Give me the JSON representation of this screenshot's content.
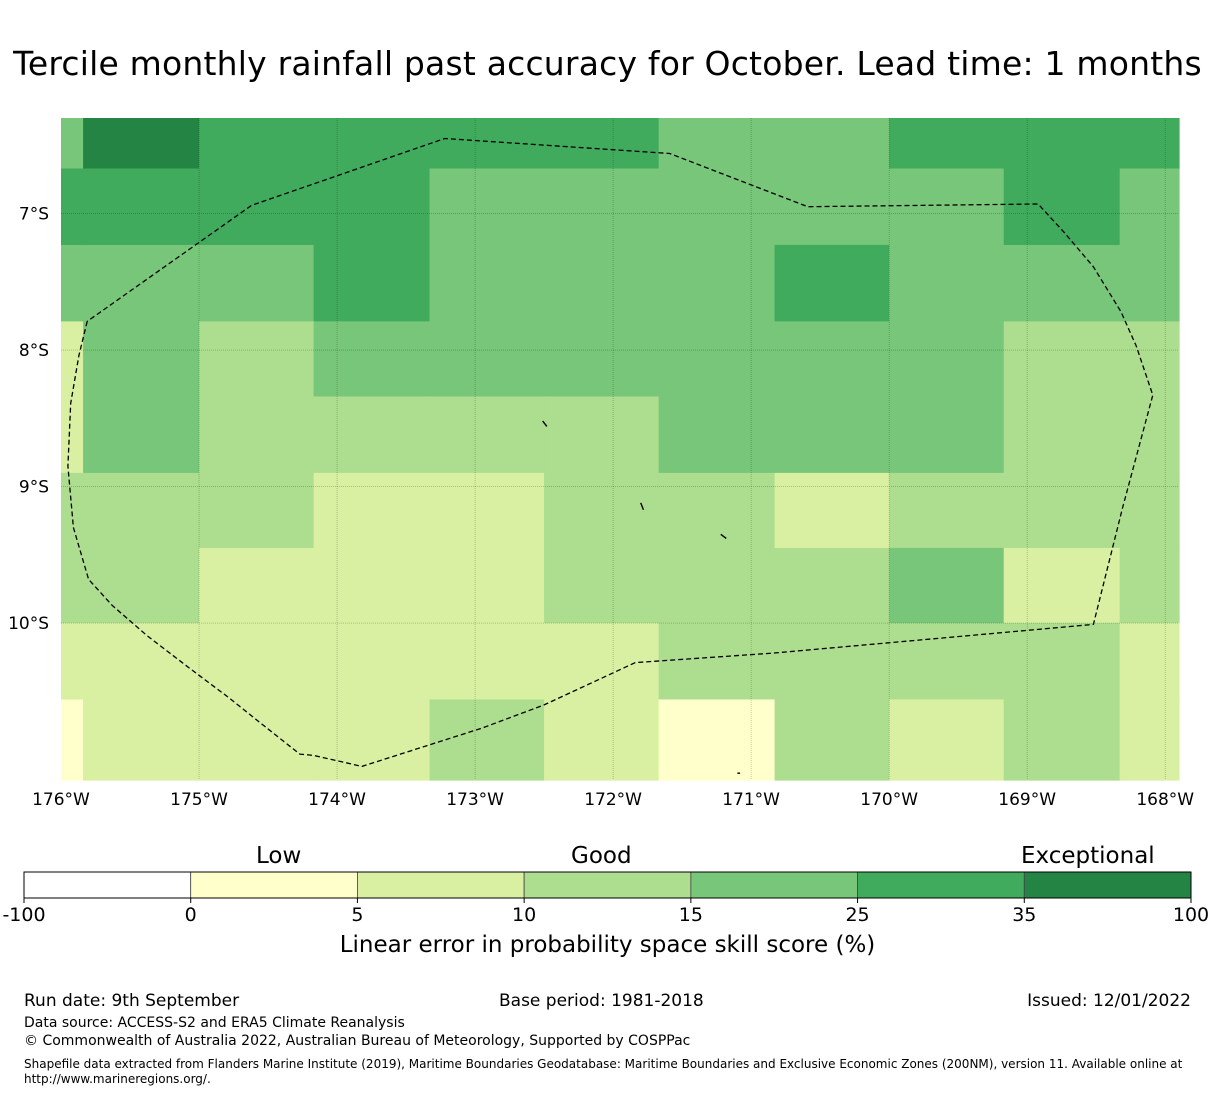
{
  "title": "Tercile monthly rainfall past accuracy for October. Lead time: 1 months",
  "map": {
    "lon_range": [
      -176.0,
      -167.9
    ],
    "lat_range": [
      -11.15,
      -6.3
    ],
    "lon_ticks": [
      {
        "value": -176,
        "label": "176°W"
      },
      {
        "value": -175,
        "label": "175°W"
      },
      {
        "value": -174,
        "label": "174°W"
      },
      {
        "value": -173,
        "label": "173°W"
      },
      {
        "value": -172,
        "label": "172°W"
      },
      {
        "value": -171,
        "label": "171°W"
      },
      {
        "value": -170,
        "label": "170°W"
      },
      {
        "value": -169,
        "label": "169°W"
      },
      {
        "value": -168,
        "label": "168°W"
      }
    ],
    "lat_ticks": [
      {
        "value": -7,
        "label": "7°S"
      },
      {
        "value": -8,
        "label": "8°S"
      },
      {
        "value": -9,
        "label": "9°S"
      },
      {
        "value": -10,
        "label": "10°S"
      }
    ],
    "grid_lines": true,
    "cell_lon_edges": [
      -176.0,
      -175.84,
      -175.0,
      -174.17,
      -173.33,
      -172.5,
      -171.67,
      -170.83,
      -170.0,
      -169.17,
      -168.33,
      -167.9
    ],
    "cell_lat_edges": [
      -6.3,
      -6.67,
      -7.23,
      -7.79,
      -8.34,
      -8.9,
      -9.45,
      -10.0,
      -10.56,
      -11.15
    ],
    "skill_class_grid": [
      [
        4,
        6,
        5,
        5,
        5,
        5,
        4,
        4,
        5,
        5,
        5
      ],
      [
        5,
        5,
        5,
        5,
        4,
        4,
        4,
        4,
        4,
        5,
        4
      ],
      [
        4,
        4,
        4,
        5,
        4,
        4,
        4,
        5,
        4,
        4,
        4
      ],
      [
        2,
        4,
        3,
        4,
        4,
        4,
        4,
        4,
        4,
        3,
        3
      ],
      [
        2,
        4,
        3,
        3,
        3,
        3,
        4,
        4,
        4,
        3,
        3
      ],
      [
        3,
        3,
        3,
        2,
        2,
        3,
        3,
        2,
        3,
        3,
        3
      ],
      [
        3,
        3,
        2,
        2,
        2,
        3,
        3,
        3,
        4,
        2,
        3
      ],
      [
        2,
        2,
        2,
        2,
        2,
        2,
        3,
        3,
        3,
        3,
        2
      ],
      [
        1,
        2,
        2,
        2,
        3,
        2,
        1,
        3,
        2,
        3,
        2
      ]
    ],
    "eez_boundary": [
      [
        -175.81,
        -7.79
      ],
      [
        -175.87,
        -8.04
      ],
      [
        -175.93,
        -8.39
      ],
      [
        -175.95,
        -8.85
      ],
      [
        -175.91,
        -9.3
      ],
      [
        -175.8,
        -9.68
      ],
      [
        -175.63,
        -9.87
      ],
      [
        -175.38,
        -10.09
      ],
      [
        -175.07,
        -10.33
      ],
      [
        -174.78,
        -10.55
      ],
      [
        -174.52,
        -10.76
      ],
      [
        -174.27,
        -10.96
      ],
      [
        -174.17,
        -10.97
      ],
      [
        -173.82,
        -11.05
      ],
      [
        -172.95,
        -10.77
      ],
      [
        -172.5,
        -10.6
      ],
      [
        -171.84,
        -10.29
      ],
      [
        -170.84,
        -10.22
      ],
      [
        -169.51,
        -10.1
      ],
      [
        -168.52,
        -10.01
      ],
      [
        -168.31,
        -9.16
      ],
      [
        -168.09,
        -8.33
      ],
      [
        -168.21,
        -7.97
      ],
      [
        -168.32,
        -7.72
      ],
      [
        -168.52,
        -7.39
      ],
      [
        -168.73,
        -7.14
      ],
      [
        -168.92,
        -6.93
      ],
      [
        -170.59,
        -6.95
      ],
      [
        -171.59,
        -6.56
      ],
      [
        -173.22,
        -6.45
      ],
      [
        -174.62,
        -6.94
      ]
    ],
    "islands": [
      [
        [
          -172.48,
          -8.56
        ],
        [
          -172.51,
          -8.52
        ]
      ],
      [
        [
          -171.78,
          -9.17
        ],
        [
          -171.8,
          -9.12
        ]
      ],
      [
        [
          -171.18,
          -9.38
        ],
        [
          -171.22,
          -9.35
        ]
      ],
      [
        [
          -171.1,
          -11.1
        ],
        [
          -171.08,
          -11.1
        ]
      ]
    ]
  },
  "legend": {
    "category_words": [
      {
        "label": "Low",
        "at_value": "0"
      },
      {
        "label": "Good",
        "at_value": "15"
      },
      {
        "label": "Exceptional",
        "at_value": "100"
      }
    ],
    "boundaries": [
      "-100",
      "0",
      "5",
      "10",
      "15",
      "25",
      "35",
      "100"
    ],
    "colors": [
      "#ffffff",
      "#ffffcc",
      "#d9f0a3",
      "#addd8e",
      "#78c679",
      "#41ab5d",
      "#238443"
    ],
    "label": "Linear error in probability space skill score (%)"
  },
  "footer": {
    "run_date": "Run date: 9th September",
    "base_period": "Base period: 1981-2018",
    "issued": "Issued: 12/01/2022",
    "data_source": "Data source: ACCESS-S2 and ERA5 Climate Reanalysis",
    "copyright": "© Commonwealth of Australia 2022, Australian Bureau of Meteorology, Supported by COSPPac",
    "shapefile_note_1": "Shapefile data extracted from Flanders Marine Institute (2019), Maritime Boundaries Geodatabase: Maritime Boundaries and Exclusive Economic Zones (200NM), version 11. Available online at",
    "shapefile_note_2": "http://www.marineregions.org/."
  }
}
